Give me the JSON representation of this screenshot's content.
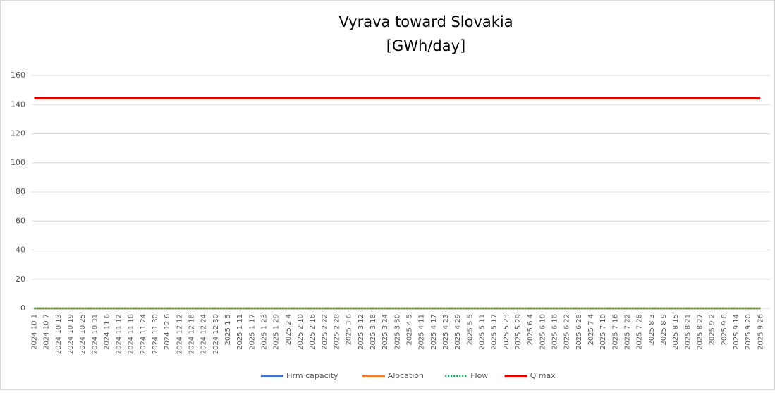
{
  "chart_data": {
    "type": "line",
    "title": "Vyrava toward Slovakia",
    "subtitle": "[GWh/day]",
    "categories": [
      "2024 10 1",
      "2024 10 7",
      "2024 10 13",
      "2024 10 19",
      "2024 10 25",
      "2024 10 31",
      "2024 11 6",
      "2024 11 12",
      "2024 11 18",
      "2024 11 24",
      "2024 11 30",
      "2024 12 6",
      "2024 12 12",
      "2024 12 18",
      "2024 12 24",
      "2024 12 30",
      "2025 1 5",
      "2025 1 11",
      "2025 1 17",
      "2025 1 23",
      "2025 1 29",
      "2025 2 4",
      "2025 2 10",
      "2025 2 16",
      "2025 2 22",
      "2025 2 28",
      "2025 3 6",
      "2025 3 12",
      "2025 3 18",
      "2025 3 24",
      "2025 3 30",
      "2025 4 5",
      "2025 4 11",
      "2025 4 17",
      "2025 4 23",
      "2025 4 29",
      "2025 5 5",
      "2025 5 11",
      "2025 5 17",
      "2025 5 23",
      "2025 5 29",
      "2025 6 4",
      "2025 6 10",
      "2025 6 16",
      "2025 6 22",
      "2025 6 28",
      "2025 7 4",
      "2025 7 10",
      "2025 7 16",
      "2025 7 22",
      "2025 7 28",
      "2025 8 3",
      "2025 8 9",
      "2025 8 15",
      "2025 8 21",
      "2025 8 27",
      "2025 9 2",
      "2025 9 8",
      "2025 9 14",
      "2025 9 20",
      "2025 9 26"
    ],
    "series": [
      {
        "name": "Firm capacity",
        "color": "#4472c4",
        "line_style": "solid",
        "values": [
          0,
          0,
          0,
          0,
          0,
          0,
          0,
          0,
          0,
          0,
          0,
          0,
          0,
          0,
          0,
          0,
          0,
          0,
          0,
          0,
          0,
          0,
          0,
          0,
          0,
          0,
          0,
          0,
          0,
          0,
          0,
          0,
          0,
          0,
          0,
          0,
          0,
          0,
          0,
          0,
          0,
          0,
          0,
          0,
          0,
          0,
          0,
          0,
          0,
          0,
          0,
          0,
          0,
          0,
          0,
          0,
          0,
          0,
          0,
          0,
          0
        ]
      },
      {
        "name": "Alocation",
        "color": "#ed7d31",
        "line_style": "solid",
        "values": [
          0,
          0,
          0,
          0,
          0,
          0,
          0,
          0,
          0,
          0,
          0,
          0,
          0,
          0,
          0,
          0,
          0,
          0,
          0,
          0,
          0,
          0,
          0,
          0,
          0,
          0,
          0,
          0,
          0,
          0,
          0,
          0,
          0,
          0,
          0,
          0,
          0,
          0,
          0,
          0,
          0,
          0,
          0,
          0,
          0,
          0,
          0,
          0,
          0,
          0,
          0,
          0,
          0,
          0,
          0,
          0,
          0,
          0,
          0,
          0,
          0
        ]
      },
      {
        "name": "Flow",
        "color": "#00b050",
        "line_style": "dotted",
        "values": [
          0,
          0,
          0,
          0,
          0,
          0,
          0,
          0,
          0,
          0,
          0,
          0,
          0,
          0,
          0,
          0,
          0,
          0,
          0,
          0,
          0,
          0,
          0,
          0,
          0,
          0,
          0,
          0,
          0,
          0,
          0,
          0,
          0,
          0,
          0,
          0,
          0,
          0,
          0,
          0,
          0,
          0,
          0,
          0,
          0,
          0,
          0,
          0,
          0,
          0,
          0,
          0,
          0,
          0,
          0,
          0,
          0,
          0,
          0,
          0,
          0
        ]
      },
      {
        "name": "Q max",
        "color": "#e00000",
        "line_style": "thick",
        "values": [
          144.5,
          144.5,
          144.5,
          144.5,
          144.5,
          144.5,
          144.5,
          144.5,
          144.5,
          144.5,
          144.5,
          144.5,
          144.5,
          144.5,
          144.5,
          144.5,
          144.5,
          144.5,
          144.5,
          144.5,
          144.5,
          144.5,
          144.5,
          144.5,
          144.5,
          144.5,
          144.5,
          144.5,
          144.5,
          144.5,
          144.5,
          144.5,
          144.5,
          144.5,
          144.5,
          144.5,
          144.5,
          144.5,
          144.5,
          144.5,
          144.5,
          144.5,
          144.5,
          144.5,
          144.5,
          144.5,
          144.5,
          144.5,
          144.5,
          144.5,
          144.5,
          144.5,
          144.5,
          144.5,
          144.5,
          144.5,
          144.5,
          144.5,
          144.5,
          144.5,
          144.5
        ]
      }
    ],
    "ylim": [
      0,
      160
    ],
    "yticks": [
      0,
      20,
      40,
      60,
      80,
      100,
      120,
      140,
      160
    ],
    "grid": true,
    "legend": "bottom"
  }
}
